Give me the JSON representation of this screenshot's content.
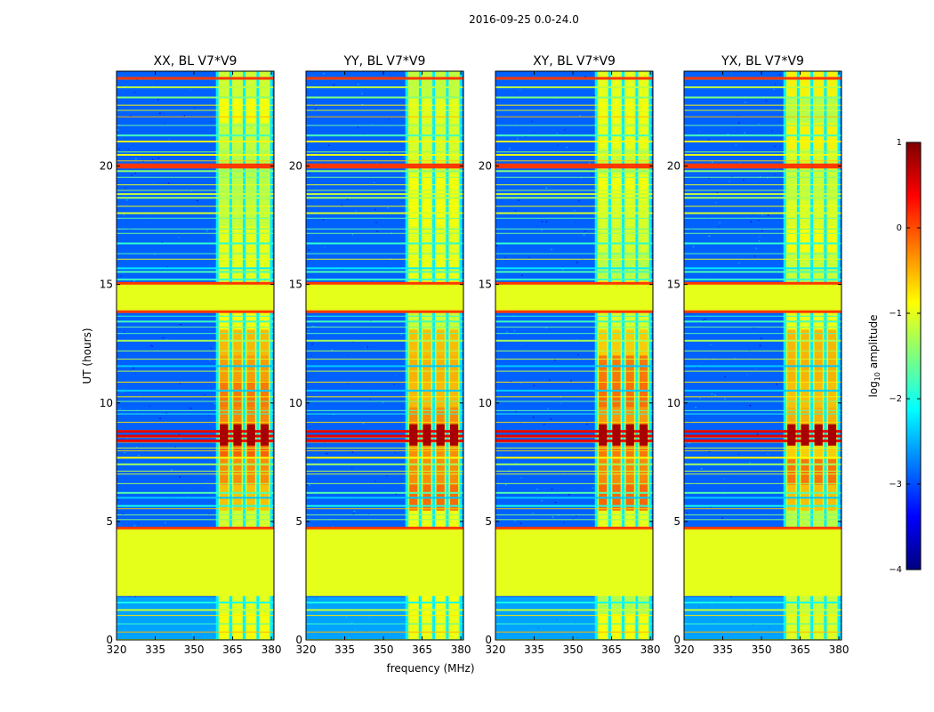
{
  "figure": {
    "suptitle": "2016-09-25 0.0-24.0",
    "xlabel": "frequency (MHz)",
    "ylabel": "UT (hours)"
  },
  "colorbar": {
    "label_prefix": "log",
    "label_sub": "10",
    "label_suffix": " amplitude",
    "ticks": [
      {
        "value": 1,
        "label": "1"
      },
      {
        "value": 0,
        "label": "0"
      },
      {
        "value": -1,
        "label": "−1"
      },
      {
        "value": -2,
        "label": "−2"
      },
      {
        "value": -3,
        "label": "−3"
      },
      {
        "value": -4,
        "label": "−4"
      }
    ],
    "range": [
      -4,
      1
    ],
    "colors": [
      "#00007f",
      "#0000ff",
      "#007fff",
      "#00ffff",
      "#7fff7f",
      "#ffff00",
      "#ff7f00",
      "#ff0000",
      "#7f0000"
    ]
  },
  "chart_data": {
    "type": "heatmap",
    "colormap": "jet",
    "panels": [
      {
        "title": "XX, BL V7*V9"
      },
      {
        "title": "YY, BL V7*V9"
      },
      {
        "title": "XY, BL V7*V9"
      },
      {
        "title": "YX, BL V7*V9"
      }
    ],
    "x_range": [
      320,
      381
    ],
    "x_ticks": [
      {
        "value": 320,
        "label": "320"
      },
      {
        "value": 335,
        "label": "335"
      },
      {
        "value": 350,
        "label": "350"
      },
      {
        "value": 365,
        "label": "365"
      },
      {
        "value": 380,
        "label": "380"
      }
    ],
    "y_range": [
      0,
      24
    ],
    "y_ticks": [
      {
        "value": 0,
        "label": "0"
      },
      {
        "value": 5,
        "label": "5"
      },
      {
        "value": 10,
        "label": "10"
      },
      {
        "value": 15,
        "label": "15"
      },
      {
        "value": 20,
        "label": "20"
      }
    ],
    "background_level": -2.9,
    "rfi_band_mhz": [
      359,
      380
    ],
    "flagged_blocks_ut": [
      [
        1.85,
        4.7
      ],
      [
        13.85,
        15.05
      ]
    ],
    "flagged_level": -1.0,
    "strong_rows_ut": [
      8.8,
      8.6,
      8.4,
      19.95,
      20.05,
      4.72,
      23.7,
      15.05,
      13.85
    ]
  }
}
